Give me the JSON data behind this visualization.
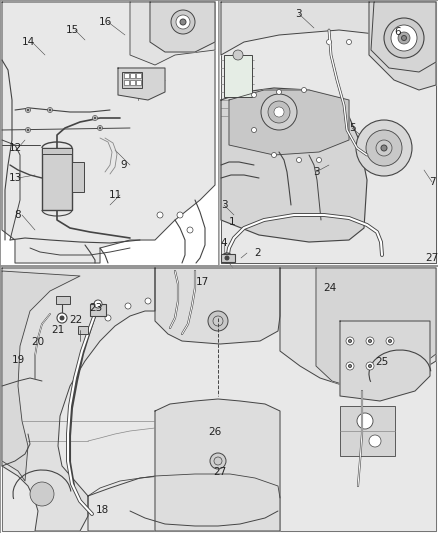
{
  "bg_color": "#ffffff",
  "panel_bg": "#f0f0f0",
  "line_color": "#444444",
  "dark_line": "#222222",
  "mid_gray": "#888888",
  "light_gray": "#cccccc",
  "very_light": "#e8e8e8",
  "label_fs": 7.5,
  "tl_labels": [
    [
      "8",
      18,
      215
    ],
    [
      "9",
      124,
      165
    ],
    [
      "11",
      115,
      195
    ],
    [
      "12",
      15,
      148
    ],
    [
      "13",
      15,
      178
    ],
    [
      "14",
      28,
      42
    ],
    [
      "15",
      72,
      30
    ],
    [
      "16",
      105,
      22
    ]
  ],
  "tr_labels": [
    [
      "1",
      232,
      222
    ],
    [
      "2",
      258,
      253
    ],
    [
      "3",
      298,
      14
    ],
    [
      "3",
      224,
      205
    ],
    [
      "3",
      316,
      172
    ],
    [
      "4",
      224,
      243
    ],
    [
      "5",
      352,
      128
    ],
    [
      "6",
      398,
      32
    ],
    [
      "7",
      432,
      182
    ],
    [
      "27",
      432,
      258
    ]
  ],
  "bot_labels": [
    [
      "17",
      202,
      282
    ],
    [
      "18",
      102,
      510
    ],
    [
      "19",
      18,
      360
    ],
    [
      "20",
      38,
      342
    ],
    [
      "21",
      58,
      330
    ],
    [
      "22",
      76,
      320
    ],
    [
      "23",
      96,
      308
    ],
    [
      "24",
      330,
      288
    ],
    [
      "25",
      382,
      362
    ],
    [
      "26",
      215,
      432
    ],
    [
      "27",
      220,
      472
    ]
  ]
}
